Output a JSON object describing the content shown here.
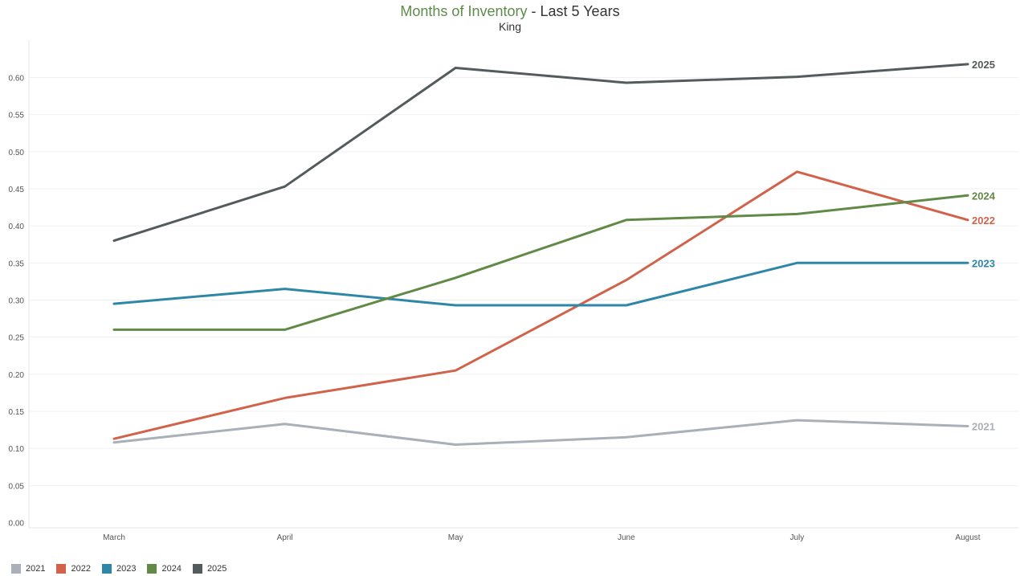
{
  "title": {
    "highlight": "Months of Inventory",
    "rest": " - Last 5 Years"
  },
  "subtitle": "King",
  "chart_data": {
    "type": "line",
    "title": "Months of Inventory - Last 5 Years",
    "subtitle": "King",
    "categories": [
      "March",
      "April",
      "May",
      "June",
      "July",
      "August"
    ],
    "ylim": [
      0,
      0.65
    ],
    "yticks": [
      "0.00",
      "0.05",
      "0.10",
      "0.15",
      "0.20",
      "0.25",
      "0.30",
      "0.35",
      "0.40",
      "0.45",
      "0.50",
      "0.55",
      "0.60"
    ],
    "grid": true,
    "legend_position": "bottom-left",
    "series": [
      {
        "name": "2021",
        "color": "#a9b0b7",
        "values": [
          0.108,
          0.133,
          0.105,
          0.115,
          0.138,
          0.13
        ]
      },
      {
        "name": "2022",
        "color": "#d0634a",
        "values": [
          0.113,
          0.168,
          0.205,
          0.327,
          0.473,
          0.408
        ]
      },
      {
        "name": "2023",
        "color": "#2f87a8",
        "values": [
          0.295,
          0.315,
          0.293,
          0.293,
          0.35,
          0.35
        ]
      },
      {
        "name": "2024",
        "color": "#628a47",
        "values": [
          0.26,
          0.26,
          0.33,
          0.408,
          0.416,
          0.441
        ]
      },
      {
        "name": "2025",
        "color": "#545b5d",
        "values": [
          0.38,
          0.453,
          0.613,
          0.593,
          0.601,
          0.618
        ]
      }
    ]
  }
}
